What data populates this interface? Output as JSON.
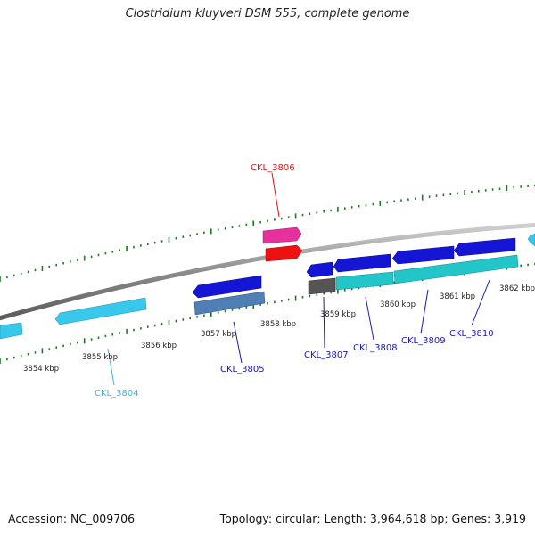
{
  "title": "Clostridium kluyveri DSM 555, complete genome",
  "footer": {
    "accession": "Accession: NC_009706",
    "topology": "Topology: circular; Length: 3,964,618 bp; Genes: 3,919"
  },
  "colors": {
    "backbone": "#8c8c8c",
    "ticks": "#1f7a1f",
    "magenta_gene": "#e8309c",
    "red_gene": "#ee1111",
    "blue_gene": "#1515d6",
    "cyan_gene": "#37c8ec",
    "steel_gene": "#4f7fb5",
    "teal_gene": "#22c6c8",
    "grey_gene": "#555555",
    "label_red": "#dd1111",
    "label_blue": "#1a1aa6",
    "label_cyan": "#3ab8dd"
  },
  "kbp_labels": [
    {
      "id": "k3854",
      "text": "3854 kbp"
    },
    {
      "id": "k3855",
      "text": "3855 kbp"
    },
    {
      "id": "k3856",
      "text": "3856 kbp"
    },
    {
      "id": "k3857",
      "text": "3857 kbp"
    },
    {
      "id": "k3858",
      "text": "3858 kbp"
    },
    {
      "id": "k3859",
      "text": "3859 kbp"
    },
    {
      "id": "k3860",
      "text": "3860 kbp"
    },
    {
      "id": "k3861",
      "text": "3861 kbp"
    },
    {
      "id": "k3862",
      "text": "3862 kbp"
    }
  ],
  "gene_labels": [
    {
      "id": "g3804",
      "text": "CKL_3804",
      "color": "label_cyan"
    },
    {
      "id": "g3805",
      "text": "CKL_3805",
      "color": "label_blue"
    },
    {
      "id": "g3806",
      "text": "CKL_3806",
      "color": "label_red"
    },
    {
      "id": "g3807",
      "text": "CKL_3807",
      "color": "label_blue"
    },
    {
      "id": "g3808",
      "text": "CKL_3808",
      "color": "label_blue"
    },
    {
      "id": "g3809",
      "text": "CKL_3809",
      "color": "label_blue"
    },
    {
      "id": "g3810",
      "text": "CKL_3810",
      "color": "label_blue"
    }
  ]
}
